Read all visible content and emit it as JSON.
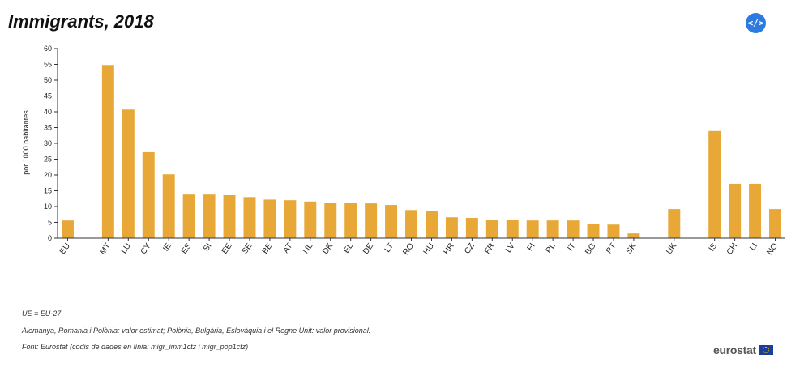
{
  "title": "Immigrants, 2018",
  "embed_icon": "code-icon",
  "embed_label": "</>",
  "notes": [
    "UE = EU-27",
    "Alemanya, Romania i Polònia: valor estimat; Polònia, Bulgària, Eslovàquia i el Regne Unit: valor provisional.",
    "Font: Eurostat (codis de dades en línia: migr_imm1ctz i migr_pop1ctz)"
  ],
  "logo_text": "eurostat",
  "colors": {
    "bar": "#e8a838",
    "axis": "#333333",
    "embed": "#2d7be0"
  },
  "chart_data": {
    "type": "bar",
    "title": "Immigrants, 2018",
    "xlabel": "",
    "ylabel": "por 1000 habitantes",
    "ylim": [
      0,
      60
    ],
    "yticks": [
      0,
      5,
      10,
      15,
      20,
      25,
      30,
      35,
      40,
      45,
      50,
      55,
      60
    ],
    "grid": false,
    "legend": "none",
    "categories": [
      "EU",
      "",
      "MT",
      "LU",
      "CY",
      "IE",
      "ES",
      "SI",
      "EE",
      "SE",
      "BE",
      "AT",
      "NL",
      "DK",
      "EL",
      "DE",
      "LT",
      "RO",
      "HU",
      "HR",
      "CZ",
      "FR",
      "LV",
      "FI",
      "PL",
      "IT",
      "BG",
      "PT",
      "SK",
      "",
      "UK",
      "",
      "IS",
      "CH",
      "LI",
      "NO"
    ],
    "values": [
      5.6,
      null,
      54.8,
      40.7,
      27.2,
      20.2,
      13.8,
      13.8,
      13.6,
      13.0,
      12.2,
      12.0,
      11.6,
      11.2,
      11.2,
      11.0,
      10.5,
      8.9,
      8.7,
      6.6,
      6.4,
      5.9,
      5.8,
      5.6,
      5.6,
      5.6,
      4.4,
      4.3,
      1.5,
      null,
      9.2,
      null,
      33.9,
      17.2,
      17.2,
      9.2
    ]
  }
}
